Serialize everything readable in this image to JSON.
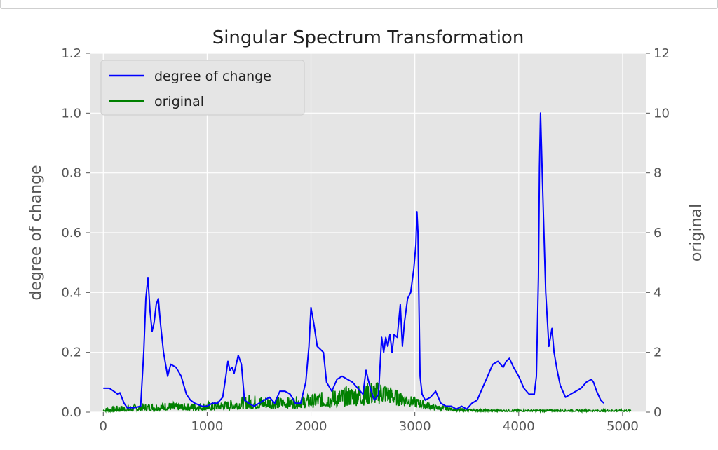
{
  "chart_data": {
    "type": "line",
    "title": "Singular Spectrum Transformation",
    "xlabel": "",
    "ylabel_left": "degree of change",
    "ylabel_right": "original",
    "xlim": [
      -130,
      5230
    ],
    "xticks": [
      0,
      1000,
      2000,
      3000,
      4000,
      5000
    ],
    "ylim_left": [
      0,
      1.2
    ],
    "yticks_left": [
      "0.0",
      "0.2",
      "0.4",
      "0.6",
      "0.8",
      "1.0",
      "1.2"
    ],
    "ylim_right": [
      0,
      12
    ],
    "yticks_right": [
      "0",
      "2",
      "4",
      "6",
      "8",
      "10",
      "12"
    ],
    "grid": true,
    "legend_position": "top-left",
    "colors": {
      "background": "#e5e5e5",
      "grid": "#ffffff",
      "degree": "#0000ff",
      "original": "#008000"
    },
    "series": [
      {
        "name": "degree of change",
        "axis": "left",
        "color": "#0000ff",
        "x": [
          0,
          60,
          100,
          140,
          160,
          200,
          230,
          300,
          360,
          390,
          410,
          430,
          450,
          470,
          490,
          510,
          530,
          550,
          580,
          620,
          650,
          700,
          750,
          800,
          840,
          880,
          950,
          1000,
          1050,
          1100,
          1150,
          1180,
          1200,
          1220,
          1240,
          1260,
          1280,
          1300,
          1330,
          1360,
          1400,
          1450,
          1500,
          1550,
          1600,
          1650,
          1700,
          1750,
          1800,
          1850,
          1900,
          1950,
          1980,
          2000,
          2030,
          2060,
          2090,
          2120,
          2150,
          2200,
          2250,
          2300,
          2350,
          2400,
          2450,
          2500,
          2530,
          2550,
          2580,
          2610,
          2650,
          2680,
          2700,
          2720,
          2740,
          2760,
          2780,
          2800,
          2830,
          2860,
          2880,
          2900,
          2930,
          2960,
          2990,
          3010,
          3020,
          3030,
          3040,
          3050,
          3070,
          3100,
          3150,
          3200,
          3250,
          3300,
          3350,
          3400,
          3450,
          3500,
          3550,
          3600,
          3650,
          3700,
          3750,
          3800,
          3850,
          3880,
          3910,
          3950,
          4000,
          4050,
          4100,
          4150,
          4170,
          4190,
          4200,
          4210,
          4230,
          4260,
          4290,
          4320,
          4340,
          4370,
          4400,
          4450,
          4500,
          4550,
          4600,
          4650,
          4700,
          4720,
          4750,
          4790,
          4820
        ],
        "values": [
          0.08,
          0.08,
          0.07,
          0.06,
          0.065,
          0.03,
          0.015,
          0.015,
          0.02,
          0.2,
          0.38,
          0.45,
          0.34,
          0.27,
          0.3,
          0.36,
          0.38,
          0.3,
          0.2,
          0.12,
          0.16,
          0.15,
          0.12,
          0.06,
          0.04,
          0.03,
          0.02,
          0.02,
          0.03,
          0.03,
          0.05,
          0.12,
          0.17,
          0.14,
          0.15,
          0.13,
          0.16,
          0.19,
          0.16,
          0.04,
          0.03,
          0.02,
          0.03,
          0.04,
          0.05,
          0.03,
          0.07,
          0.07,
          0.06,
          0.03,
          0.03,
          0.1,
          0.22,
          0.35,
          0.29,
          0.22,
          0.21,
          0.2,
          0.1,
          0.07,
          0.11,
          0.12,
          0.11,
          0.1,
          0.08,
          0.06,
          0.14,
          0.11,
          0.07,
          0.04,
          0.06,
          0.25,
          0.2,
          0.25,
          0.22,
          0.26,
          0.2,
          0.26,
          0.25,
          0.36,
          0.22,
          0.3,
          0.38,
          0.4,
          0.48,
          0.56,
          0.67,
          0.6,
          0.35,
          0.12,
          0.06,
          0.04,
          0.05,
          0.07,
          0.03,
          0.02,
          0.02,
          0.01,
          0.02,
          0.01,
          0.03,
          0.04,
          0.08,
          0.12,
          0.16,
          0.17,
          0.15,
          0.17,
          0.18,
          0.15,
          0.12,
          0.08,
          0.06,
          0.06,
          0.12,
          0.45,
          0.82,
          1.0,
          0.75,
          0.4,
          0.22,
          0.28,
          0.2,
          0.14,
          0.09,
          0.05,
          0.06,
          0.07,
          0.08,
          0.1,
          0.11,
          0.1,
          0.07,
          0.04,
          0.03
        ]
      },
      {
        "name": "original",
        "axis": "right",
        "color": "#008000",
        "x": [
          0,
          200,
          400,
          600,
          800,
          1000,
          1200,
          1400,
          1600,
          1800,
          2000,
          2200,
          2400,
          2600,
          2700,
          2800,
          2900,
          3000,
          3200,
          3400,
          3600,
          3800,
          4000,
          4200,
          4400,
          4600,
          4800,
          5000,
          5080
        ],
        "values": [
          0.05,
          0.07,
          0.12,
          0.15,
          0.14,
          0.15,
          0.2,
          0.25,
          0.28,
          0.3,
          0.35,
          0.4,
          0.5,
          0.6,
          0.7,
          0.55,
          0.45,
          0.35,
          0.15,
          0.08,
          0.06,
          0.05,
          0.05,
          0.05,
          0.05,
          0.05,
          0.05,
          0.05,
          0.05
        ],
        "peaks": [
          0.15,
          0.25,
          0.3,
          0.35,
          0.3,
          0.35,
          0.4,
          0.6,
          0.55,
          0.5,
          0.6,
          0.75,
          0.9,
          1.05,
          1.0,
          0.8,
          0.6,
          0.5,
          0.25,
          0.12,
          0.1,
          0.08,
          0.08,
          0.08,
          0.08,
          0.08,
          0.08,
          0.08,
          0.08
        ]
      }
    ]
  }
}
